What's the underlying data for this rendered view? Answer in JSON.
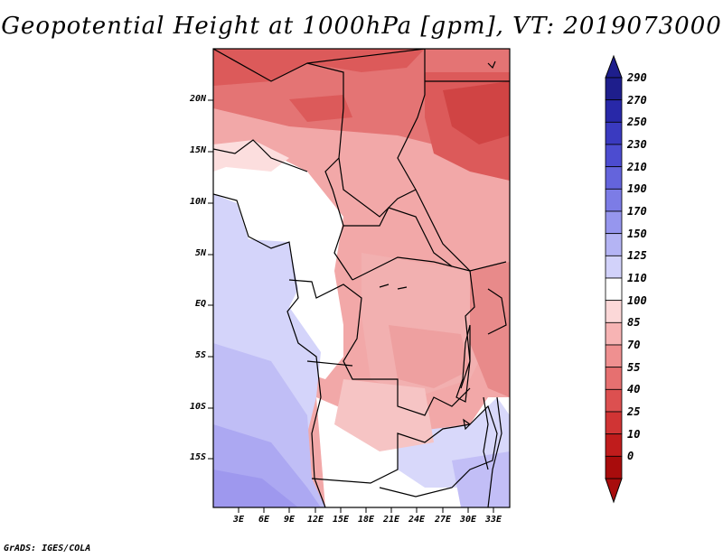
{
  "title": "Geopotential Height at 1000hPa [gpm], VT: 2019073000",
  "footer": "GrADS: IGES/COLA",
  "lat_labels": [
    "20N",
    "15N",
    "10N",
    "5N",
    "EQ",
    "5S",
    "10S",
    "15S"
  ],
  "lon_labels": [
    "3E",
    "6E",
    "9E",
    "12E",
    "15E",
    "18E",
    "21E",
    "24E",
    "27E",
    "30E",
    "33E"
  ],
  "colorbar": {
    "levels": [
      "290",
      "270",
      "250",
      "230",
      "210",
      "190",
      "170",
      "150",
      "125",
      "110",
      "100",
      "85",
      "70",
      "55",
      "40",
      "25",
      "10",
      "0"
    ],
    "colors": [
      "#1e1e8c",
      "#2828a8",
      "#3a3ac0",
      "#4c4cd0",
      "#6464dc",
      "#7c7ce6",
      "#9696ee",
      "#b4b4f4",
      "#d2d2fa",
      "#ffffff",
      "#fcd8d8",
      "#f7b4b4",
      "#ef9090",
      "#e67070",
      "#dc5050",
      "#d03434",
      "#c01c1c",
      "#a80c0c"
    ]
  },
  "colors": {
    "land_far_north": "#d84a4a",
    "ocean_south": "#a8a4f0",
    "border": "#000000"
  }
}
